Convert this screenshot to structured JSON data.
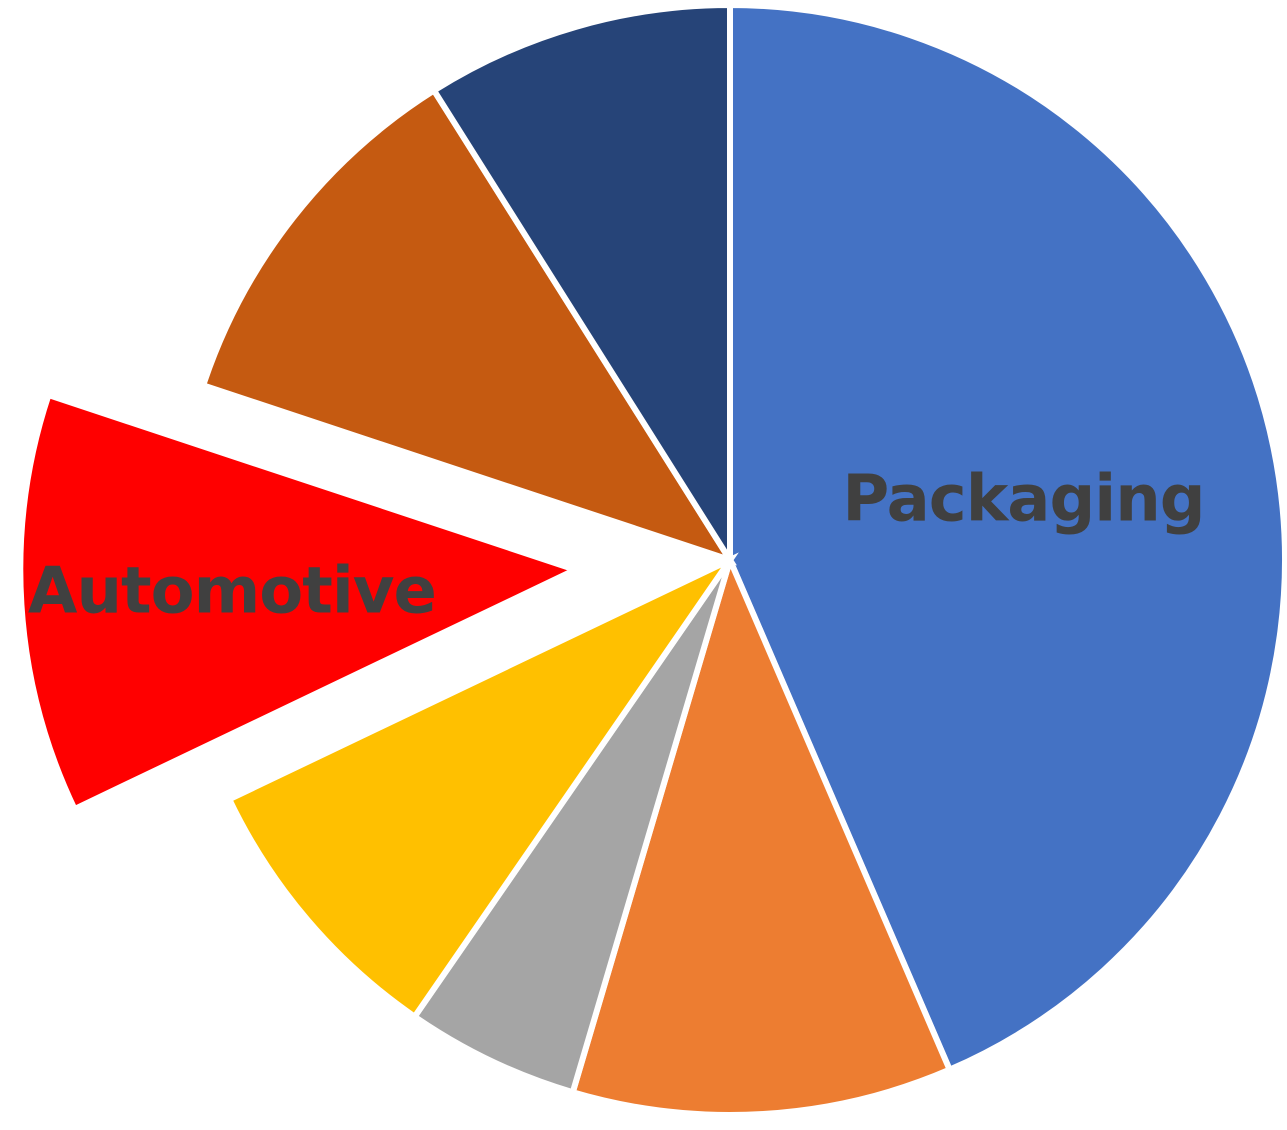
{
  "chart_data": {
    "type": "pie",
    "title": "",
    "start_angle_deg": 0,
    "direction": "clockwise",
    "exploded_slice": "Automotive",
    "slices": [
      {
        "label": "Packaging",
        "value": 45.7,
        "color": "#4472C4",
        "show_label": true
      },
      {
        "label": "",
        "value": 11.6,
        "color": "#ED7D31",
        "show_label": false
      },
      {
        "label": "",
        "value": 5.3,
        "color": "#A5A5A5",
        "show_label": false
      },
      {
        "label": "",
        "value": 8.7,
        "color": "#FFC000",
        "show_label": false
      },
      {
        "label": "Automotive",
        "value": 12.8,
        "color": "#FF0000",
        "show_label": true
      },
      {
        "label": "",
        "value": 11.5,
        "color": "#C55A11",
        "show_label": false
      },
      {
        "label": "",
        "value": 9.4,
        "color": "#264478",
        "show_label": false
      }
    ]
  }
}
